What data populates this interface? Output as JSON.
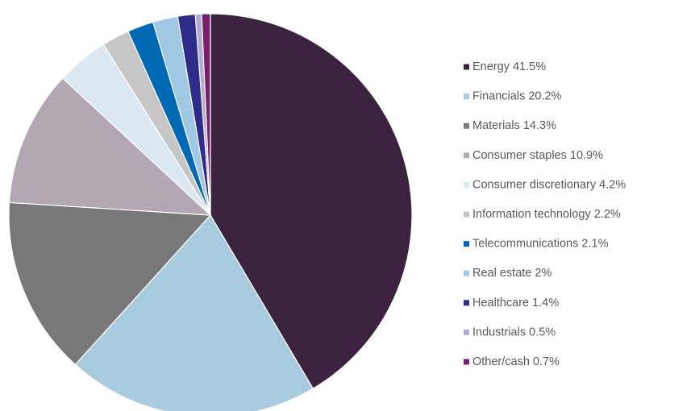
{
  "chart_data": {
    "type": "pie",
    "categories": [
      "Energy",
      "Financials",
      "Materials",
      "Consumer staples",
      "Consumer discretionary",
      "Information technology",
      "Telecommunications",
      "Real estate",
      "Healthcare",
      "Industrials",
      "Other/cash"
    ],
    "values": [
      41.5,
      20.2,
      14.3,
      10.9,
      4.2,
      2.2,
      2.1,
      2,
      1.4,
      0.5,
      0.7
    ],
    "value_labels": [
      "41.5%",
      "20.2%",
      "14.3%",
      "10.9%",
      "4.2%",
      "2.2%",
      "2.1%",
      "2%",
      "1.4%",
      "0.5%",
      "0.7%"
    ],
    "colors": [
      "#3b2340",
      "#a9cbe0",
      "#787878",
      "#b2a7b3",
      "#dce8f1",
      "#c6c6c6",
      "#0069b4",
      "#9fc8e4",
      "#2f2b88",
      "#b3abd7",
      "#7a1f6c"
    ],
    "legend": "right"
  }
}
